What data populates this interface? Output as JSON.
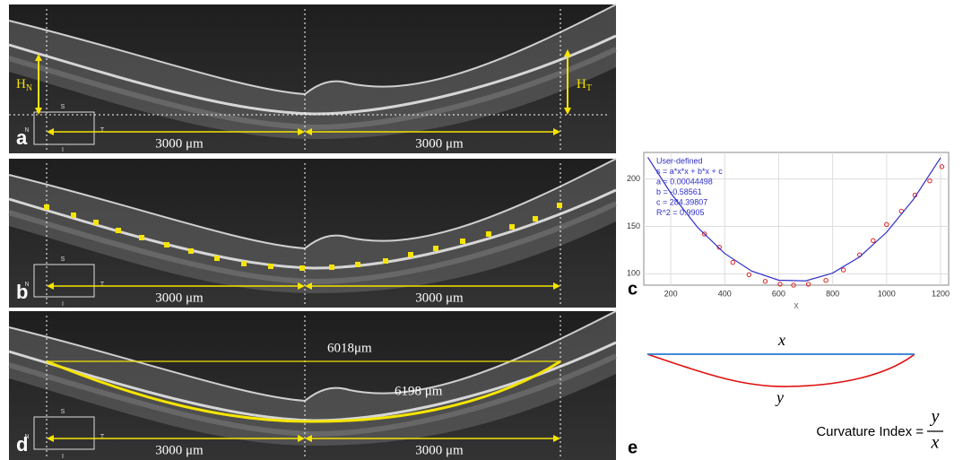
{
  "panel_labels": [
    "a",
    "b",
    "c",
    "d",
    "e"
  ],
  "oct": {
    "distance": "3000 μm",
    "compass": [
      "S",
      "N",
      "T",
      "I"
    ],
    "h_nasal": {
      "main": "H",
      "sub": "N"
    },
    "h_temporal": {
      "main": "H",
      "sub": "T"
    },
    "chord": "6018μm",
    "arc": "6198 μm"
  },
  "chart_data": {
    "type": "scatter",
    "xlabel": "X",
    "fit_legend": [
      "User-defined",
      "s = a*x*x + b*x + c",
      "a = 0.00044498",
      "b = -0.58561",
      "c = 284.39807",
      "R^2 = 0.9905"
    ],
    "xlim": [
      100,
      1230
    ],
    "ylim": [
      88,
      228
    ],
    "xticks": [
      200,
      400,
      600,
      800,
      1000,
      1200
    ],
    "yticks": [
      100,
      150,
      200
    ],
    "grid": true,
    "series": [
      {
        "kind": "points",
        "color": "#e02020",
        "x": [
          325,
          380,
          430,
          490,
          550,
          605,
          655,
          710,
          775,
          840,
          900,
          950,
          1000,
          1055,
          1105,
          1160,
          1205
        ],
        "values": [
          142,
          128,
          112,
          99,
          92,
          89,
          88,
          89,
          93,
          104,
          120,
          135,
          152,
          166,
          183,
          198,
          213
        ]
      },
      {
        "kind": "line",
        "color": "#3030c8",
        "x": [
          115,
          200,
          300,
          400,
          500,
          600,
          700,
          800,
          900,
          1000,
          1100,
          1200
        ],
        "values": [
          222.9,
          185.1,
          148.8,
          121.4,
          102.8,
          93.2,
          92.5,
          100.7,
          117.8,
          143.8,
          178.7,
          222.4
        ]
      }
    ]
  },
  "curvature": {
    "x": "x",
    "y": "y",
    "label": "Curvature Index =",
    "numerator": "y",
    "denominator": "x"
  }
}
